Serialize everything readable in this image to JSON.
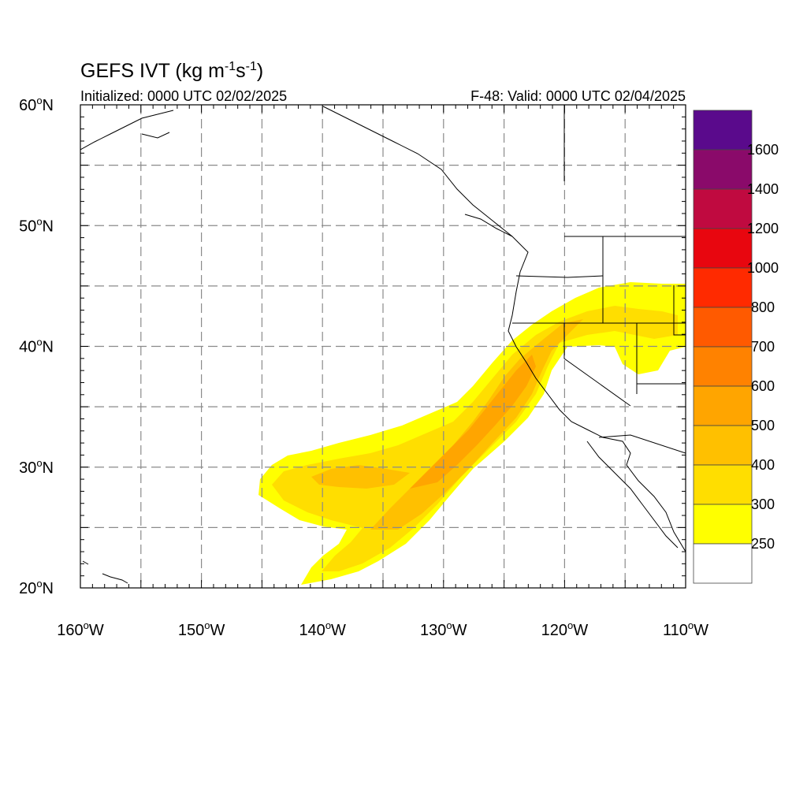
{
  "title": {
    "main": "GEFS IVT (kg m",
    "sup1": "-1",
    "mid": "s",
    "sup2": "-1",
    "end": ")"
  },
  "subtitle_left": "Initialized: 0000 UTC 02/02/2025",
  "subtitle_right": "F-48: Valid: 0000 UTC 02/04/2025",
  "map": {
    "lon_range": [
      -160,
      -110
    ],
    "lat_range": [
      20,
      60
    ],
    "lon_ticks": [
      {
        "deg": "160",
        "hemi": "W"
      },
      {
        "deg": "150",
        "hemi": "W"
      },
      {
        "deg": "140",
        "hemi": "W"
      },
      {
        "deg": "130",
        "hemi": "W"
      },
      {
        "deg": "120",
        "hemi": "W"
      },
      {
        "deg": "110",
        "hemi": "W"
      }
    ],
    "lat_ticks": [
      {
        "deg": "60",
        "hemi": "N"
      },
      {
        "deg": "50",
        "hemi": "N"
      },
      {
        "deg": "40",
        "hemi": "N"
      },
      {
        "deg": "30",
        "hemi": "N"
      },
      {
        "deg": "20",
        "hemi": "N"
      }
    ],
    "grid": "dashed, every 5 degrees",
    "ivt_field": {
      "units": "kg m-1 s-1",
      "feature": "atmospheric river",
      "max_category": "500-600"
    }
  },
  "colorbar": {
    "labels": [
      "1600",
      "1400",
      "1200",
      "1000",
      "800",
      "700",
      "600",
      "500",
      "400",
      "300",
      "250"
    ],
    "colors_top_to_bottom": [
      "#5a0a8c",
      "#8a0a6a",
      "#c00a40",
      "#e8060f",
      "#ff2a00",
      "#ff5a00",
      "#ff8200",
      "#ffa500",
      "#ffc000",
      "#ffde00",
      "#ffff00",
      "#ffffff"
    ]
  }
}
